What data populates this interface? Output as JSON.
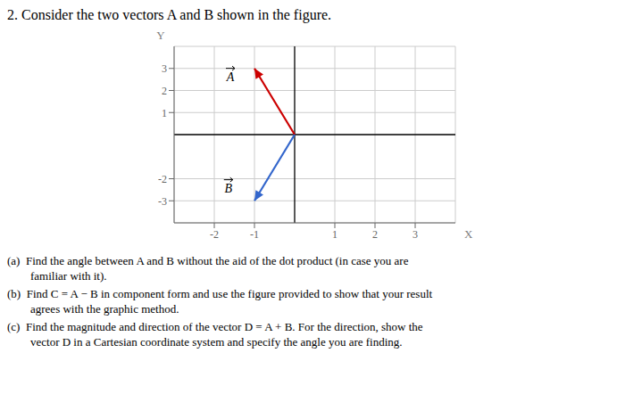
{
  "chart_data": {
    "type": "vector",
    "title": "2.  Consider the two vectors A and B shown in the figure.",
    "xlabel": "X",
    "ylabel": "Y",
    "xlim": [
      -3,
      4
    ],
    "ylim": [
      -4,
      4
    ],
    "xticks": [
      -2,
      -1,
      1,
      2,
      3
    ],
    "yticks": [
      -3,
      -2,
      1,
      2,
      3
    ],
    "grid": true,
    "series": [
      {
        "name": "A",
        "color": "#cc0000",
        "x": [
          0,
          -1
        ],
        "values": [
          0,
          3
        ]
      },
      {
        "name": "B",
        "color": "#3366cc",
        "x": [
          0,
          -1
        ],
        "values": [
          0,
          -3
        ]
      }
    ],
    "annotations": [
      "(a)  Find the angle between A and B without the aid of the dot product (in case you are\n        familiar with it).",
      "(b)  Find C = A − B in component form and use the figure provided to show that your result\n        agrees with the graphic method.",
      "(c)  Find the magnitude and direction of the vector D = A + B. For the direction, show the\n        vector D in a Cartesian coordinate system and specify the angle you are finding."
    ]
  }
}
